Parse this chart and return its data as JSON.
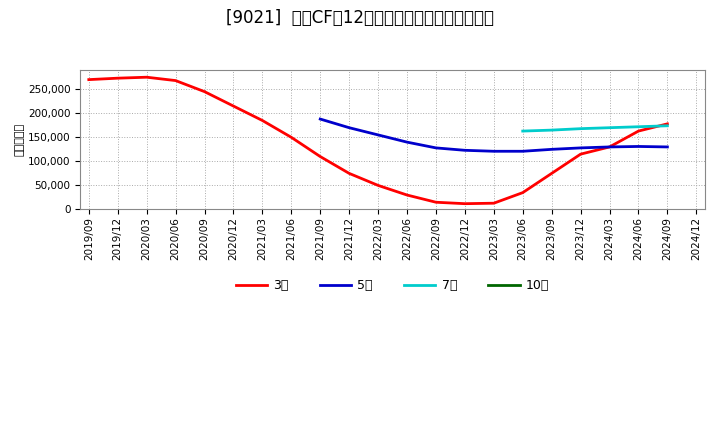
{
  "title": "[9021]  営業CFの12か月移動合計の平均値の推移",
  "ylabel": "（百万円）",
  "background_color": "#ffffff",
  "plot_bg_color": "#ffffff",
  "grid_color": "#aaaaaa",
  "series": {
    "3year": {
      "label": "3年",
      "color": "#ff0000",
      "x": [
        "2019/09",
        "2019/12",
        "2020/03",
        "2020/06",
        "2020/09",
        "2020/12",
        "2021/03",
        "2021/06",
        "2021/09",
        "2021/12",
        "2022/03",
        "2022/06",
        "2022/09",
        "2022/12",
        "2023/03",
        "2023/06",
        "2023/09",
        "2023/12",
        "2024/03",
        "2024/06",
        "2024/09"
      ],
      "y": [
        270000,
        273000,
        275000,
        268000,
        245000,
        215000,
        185000,
        150000,
        110000,
        75000,
        50000,
        30000,
        15000,
        12000,
        13000,
        35000,
        75000,
        115000,
        130000,
        163000,
        178000
      ]
    },
    "5year": {
      "label": "5年",
      "color": "#0000cc",
      "x": [
        "2021/09",
        "2021/12",
        "2022/03",
        "2022/06",
        "2022/09",
        "2022/12",
        "2023/03",
        "2023/06",
        "2023/09",
        "2023/12",
        "2024/03",
        "2024/06",
        "2024/09"
      ],
      "y": [
        188000,
        170000,
        155000,
        140000,
        128000,
        123000,
        121000,
        121000,
        125000,
        128000,
        130000,
        131000,
        130000
      ]
    },
    "7year": {
      "label": "7年",
      "color": "#00cccc",
      "x": [
        "2023/06",
        "2023/09",
        "2023/12",
        "2024/03",
        "2024/06",
        "2024/09"
      ],
      "y": [
        163000,
        165000,
        168000,
        170000,
        172000,
        174000
      ]
    },
    "10year": {
      "label": "10年",
      "color": "#006600",
      "x": [],
      "y": []
    }
  },
  "xticks": [
    "2019/09",
    "2019/12",
    "2020/03",
    "2020/06",
    "2020/09",
    "2020/12",
    "2021/03",
    "2021/06",
    "2021/09",
    "2021/12",
    "2022/03",
    "2022/06",
    "2022/09",
    "2022/12",
    "2023/03",
    "2023/06",
    "2023/09",
    "2023/12",
    "2024/03",
    "2024/06",
    "2024/09",
    "2024/12"
  ],
  "ylim": [
    0,
    290000
  ],
  "yticks": [
    0,
    50000,
    100000,
    150000,
    200000,
    250000
  ],
  "line_width": 2.0,
  "title_fontsize": 12,
  "legend_fontsize": 9,
  "tick_fontsize": 7.5,
  "ylabel_fontsize": 8
}
